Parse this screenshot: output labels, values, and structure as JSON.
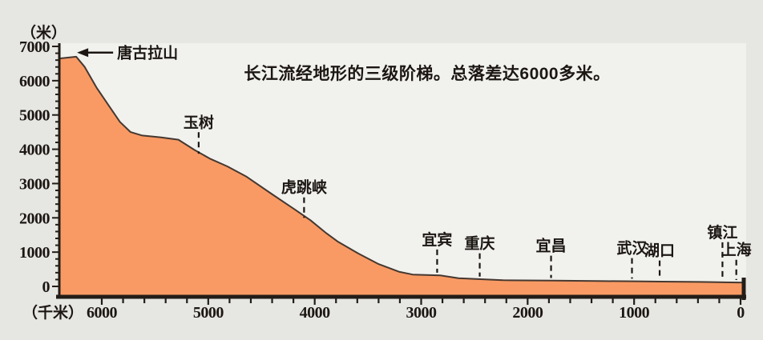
{
  "title": "长江流经地形的三级阶梯。总落差达6000多米。",
  "colors": {
    "terrain_fill": "#F99A64",
    "terrain_outline": "#453830",
    "axis": "#231d18",
    "text": "#1c1713",
    "page_bg": "#e6e6e2",
    "plot_bg": "#f1f1ee"
  },
  "chart_data": {
    "type": "area",
    "title": "长江流经地形的三级阶梯。总落差达6000多米。",
    "x_axis": {
      "label": "（千米）",
      "ticks": [
        6000,
        5000,
        4000,
        3000,
        2000,
        1000,
        0
      ],
      "minor_step": 200,
      "reversed": true,
      "range_km": [
        6400,
        0
      ]
    },
    "y_axis": {
      "label": "（米）",
      "ticks": [
        7000,
        6000,
        5000,
        4000,
        3000,
        2000,
        1000,
        0
      ],
      "minor_step": 200,
      "range_m": [
        0,
        7000
      ]
    },
    "profile_km_m": [
      [
        6390,
        6650
      ],
      [
        6240,
        6700
      ],
      [
        6160,
        6400
      ],
      [
        6050,
        5800
      ],
      [
        5940,
        5300
      ],
      [
        5830,
        4800
      ],
      [
        5730,
        4500
      ],
      [
        5620,
        4400
      ],
      [
        5450,
        4350
      ],
      [
        5280,
        4280
      ],
      [
        5130,
        3980
      ],
      [
        4980,
        3720
      ],
      [
        4820,
        3500
      ],
      [
        4640,
        3200
      ],
      [
        4420,
        2730
      ],
      [
        4190,
        2250
      ],
      [
        4040,
        1930
      ],
      [
        3890,
        1550
      ],
      [
        3780,
        1300
      ],
      [
        3590,
        960
      ],
      [
        3400,
        650
      ],
      [
        3210,
        430
      ],
      [
        3080,
        345
      ],
      [
        2820,
        320
      ],
      [
        2650,
        240
      ],
      [
        2440,
        210
      ],
      [
        2230,
        180
      ],
      [
        1750,
        170
      ],
      [
        1270,
        155
      ],
      [
        990,
        150
      ],
      [
        745,
        140
      ],
      [
        390,
        130
      ],
      [
        150,
        120
      ],
      [
        20,
        115
      ],
      [
        -40,
        115
      ]
    ],
    "landmarks": [
      {
        "name": "唐古拉山",
        "km": 6240,
        "elev": 6700,
        "label_elev": 6820,
        "style": "arrow"
      },
      {
        "name": "玉树",
        "km": 5090,
        "elev": 3800,
        "label_elev": 4800,
        "style": "dash"
      },
      {
        "name": "虎跳峡",
        "km": 4100,
        "elev": 1930,
        "label_elev": 2900,
        "style": "dash"
      },
      {
        "name": "宜宾",
        "km": 2850,
        "elev": 330,
        "label_elev": 1380,
        "style": "dash"
      },
      {
        "name": "重庆",
        "km": 2450,
        "elev": 215,
        "label_elev": 1270,
        "style": "dash"
      },
      {
        "name": "宜昌",
        "km": 1780,
        "elev": 175,
        "label_elev": 1200,
        "style": "dash"
      },
      {
        "name": "武汉",
        "km": 1020,
        "elev": 155,
        "label_elev": 1130,
        "style": "dash"
      },
      {
        "name": "湖口",
        "km": 760,
        "elev": 145,
        "label_elev": 1060,
        "style": "dash"
      },
      {
        "name": "镇江",
        "km": 170,
        "elev": 125,
        "label_elev": 1590,
        "style": "dash"
      },
      {
        "name": "上海",
        "km": 40,
        "elev": 118,
        "label_elev": 1080,
        "style": "dash"
      }
    ]
  }
}
